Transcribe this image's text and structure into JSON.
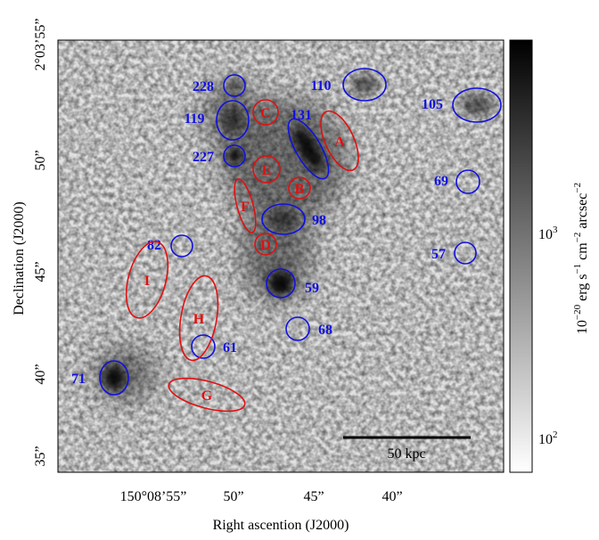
{
  "figure": {
    "x_axis_label": "Right ascention (J2000)",
    "y_axis_label": "Declination (J2000)",
    "x_ticks": [
      "150°08’55”",
      "50”",
      "45”",
      "40”"
    ],
    "y_ticks": [
      "2°03’55”",
      "50”",
      "45”",
      "40”",
      "35”"
    ],
    "colorbar": {
      "label": [
        {
          "text": "10"
        },
        {
          "sup": "−20"
        },
        {
          "text": " erg s"
        },
        {
          "sup": "−1"
        },
        {
          "text": " cm"
        },
        {
          "sup": "−2"
        },
        {
          "text": " arcsec"
        },
        {
          "sup": "−2"
        }
      ],
      "ticks": [
        {
          "base": "10",
          "exp": "3"
        },
        {
          "base": "10",
          "exp": "2"
        }
      ]
    },
    "scale_bar": "50 kpc",
    "regions": [
      {
        "label": "228",
        "color": "#1010e0"
      },
      {
        "label": "119",
        "color": "#1010e0"
      },
      {
        "label": "227",
        "color": "#1010e0"
      },
      {
        "label": "110",
        "color": "#1010e0"
      },
      {
        "label": "131",
        "color": "#1010e0"
      },
      {
        "label": "105",
        "color": "#1010e0"
      },
      {
        "label": "69",
        "color": "#1010e0"
      },
      {
        "label": "98",
        "color": "#1010e0"
      },
      {
        "label": "82",
        "color": "#1010e0"
      },
      {
        "label": "57",
        "color": "#1010e0"
      },
      {
        "label": "59",
        "color": "#1010e0"
      },
      {
        "label": "68",
        "color": "#1010e0"
      },
      {
        "label": "71",
        "color": "#1010e0"
      },
      {
        "label": "61",
        "color": "#1010e0"
      },
      {
        "label": "C",
        "color": "#e01010"
      },
      {
        "label": "A",
        "color": "#e01010"
      },
      {
        "label": "E",
        "color": "#e01010"
      },
      {
        "label": "B",
        "color": "#e01010"
      },
      {
        "label": "F",
        "color": "#e01010"
      },
      {
        "label": "D",
        "color": "#e01010"
      },
      {
        "label": "I",
        "color": "#e01010"
      },
      {
        "label": "H",
        "color": "#e01010"
      },
      {
        "label": "G",
        "color": "#e01010"
      }
    ]
  }
}
